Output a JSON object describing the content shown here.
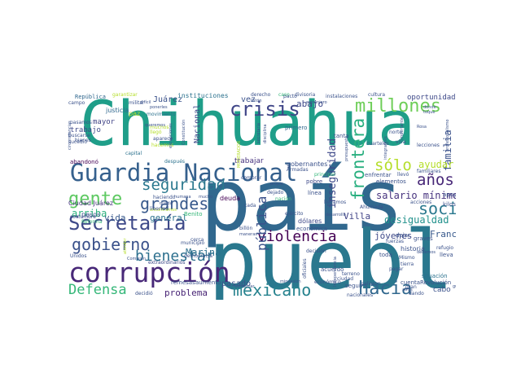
{
  "word_cloud": {
    "words": [
      {
        "text": "Chihuahua",
        "color": "#1f9e89"
      },
      {
        "text": "país",
        "color": "#31688e"
      },
      {
        "text": "pueblo",
        "color": "#2a788e"
      },
      {
        "text": "Guardia Nacional",
        "color": "#35608d"
      },
      {
        "text": "corrupción",
        "color": "#482878"
      },
      {
        "text": "Secretaría",
        "color": "#3e4989"
      },
      {
        "text": "millones",
        "color": "#6ece58"
      },
      {
        "text": "crisis",
        "color": "#404688"
      },
      {
        "text": "gente",
        "color": "#5ec962"
      },
      {
        "text": "mexicano",
        "color": "#26828e"
      },
      {
        "text": "hacia",
        "color": "#31688e"
      },
      {
        "text": "gobierno",
        "color": "#3b528b"
      },
      {
        "text": "Defensa",
        "color": "#35b779"
      },
      {
        "text": "bienestar",
        "color": "#2d708e"
      },
      {
        "text": "grandes",
        "color": "#38598c"
      },
      {
        "text": "seguridad",
        "color": "#2a788e"
      },
      {
        "text": "violencia",
        "color": "#440154"
      },
      {
        "text": "social",
        "color": "#2a788e"
      },
      {
        "text": "frontera",
        "color": "#29af7f"
      },
      {
        "text": "sólo",
        "color": "#b5de2b"
      },
      {
        "text": "años",
        "color": "#482878"
      },
      {
        "text": "pública",
        "color": "#3b528b"
      },
      {
        "text": "salario mínimo",
        "color": "#46327e"
      },
      {
        "text": "desigualdad",
        "color": "#21918c"
      },
      {
        "text": "inseguridad",
        "color": "#3e4989"
      },
      {
        "text": "familia",
        "color": "#3b528b"
      },
      {
        "text": "ayudar",
        "color": "#b5de2b"
      },
      {
        "text": "arriba",
        "color": "#2db27d"
      },
      {
        "text": "vida",
        "color": "#38598c"
      },
      {
        "text": "Marina",
        "color": "#2d708e"
      },
      {
        "text": "problema",
        "color": "#482475"
      },
      {
        "text": "Villa",
        "color": "#414487"
      },
      {
        "text": "jóvenes",
        "color": "#3e4989"
      },
      {
        "text": "Francisco",
        "color": "#38598c"
      },
      {
        "text": "oportunidades",
        "color": "#3e4989"
      },
      {
        "text": "Juárez",
        "color": "#3b528b"
      },
      {
        "text": "instituciones",
        "color": "#2c728e"
      },
      {
        "text": "República",
        "color": "#31688e"
      },
      {
        "text": "mayor",
        "color": "#414487"
      },
      {
        "text": "trabajo",
        "color": "#3e4989"
      },
      {
        "text": "vez",
        "color": "#3b528b"
      },
      {
        "text": "abajo",
        "color": "#3e4989"
      },
      {
        "text": "general",
        "color": "#2c728e"
      },
      {
        "text": "pasado",
        "color": "#3b528b"
      },
      {
        "text": "Nacional",
        "color": "#3e4989"
      },
      {
        "text": "Ciudad Juárez",
        "color": "#46327e"
      },
      {
        "text": "gobernantes",
        "color": "#3b528b"
      },
      {
        "text": "trabajar",
        "color": "#46327e"
      },
      {
        "text": "Benito",
        "color": "#35b779"
      },
      {
        "text": "dólares",
        "color": "#3e4989"
      },
      {
        "text": "historia",
        "color": "#3b528b"
      },
      {
        "text": "elementos",
        "color": "#3b528b"
      },
      {
        "text": "primero",
        "color": "#31688e"
      },
      {
        "text": "línea",
        "color": "#3b528b"
      },
      {
        "text": "pobre",
        "color": "#3e4989"
      },
      {
        "text": "deuda",
        "color": "#440154"
      },
      {
        "text": "cuenta",
        "color": "#3b528b"
      },
      {
        "text": "Revolución",
        "color": "#3b528b"
      },
      {
        "text": "seguir",
        "color": "#3b528b"
      },
      {
        "text": "cabo",
        "color": "#3b528b"
      },
      {
        "text": "remesas",
        "color": "#3b528b"
      },
      {
        "text": "aumento",
        "color": "#3b528b"
      },
      {
        "text": "económica",
        "color": "#3b528b"
      },
      {
        "text": "costumbre",
        "color": "#3e4989"
      },
      {
        "text": "pesos",
        "color": "#3b528b"
      },
      {
        "text": "justicia",
        "color": "#31688e"
      },
      {
        "text": "militar",
        "color": "#3b528b"
      },
      {
        "text": "paz",
        "color": "#b5de2b"
      },
      {
        "text": "caso",
        "color": "#35b779"
      },
      {
        "text": "dejar",
        "color": "#3b528b"
      },
      {
        "text": "graves",
        "color": "#3b528b"
      },
      {
        "text": "lleva",
        "color": "#3b528b"
      },
      {
        "text": "kilos",
        "color": "#3b528b"
      },
      {
        "text": "apoyo",
        "color": "#3b528b"
      },
      {
        "text": "situación",
        "color": "#2c728e"
      },
      {
        "text": "nacionales",
        "color": "#3b528b"
      },
      {
        "text": "salieron",
        "color": "#3b528b"
      },
      {
        "text": "acuerdo",
        "color": "#3b528b"
      },
      {
        "text": "decidió",
        "color": "#3b528b"
      },
      {
        "text": "extraordinarios",
        "color": "#3e4989"
      },
      {
        "text": "municipio",
        "color": "#3b528b"
      },
      {
        "text": "abandonó",
        "color": "#440154"
      },
      {
        "text": "después",
        "color": "#2c728e"
      },
      {
        "text": "capital",
        "color": "#2c728e"
      },
      {
        "text": "movimiento",
        "color": "#2c728e"
      },
      {
        "text": "hacemos",
        "color": "#b5de2b"
      },
      {
        "text": "encontramos",
        "color": "#b5de2b"
      },
      {
        "text": "haciendo",
        "color": "#3b528b"
      },
      {
        "text": "libertad",
        "color": "#3b528b"
      },
      {
        "text": "nación",
        "color": "#35b779"
      },
      {
        "text": "dejado",
        "color": "#3b528b"
      },
      {
        "text": "Armadas",
        "color": "#3b528b"
      },
      {
        "text": "llevó",
        "color": "#3b528b"
      },
      {
        "text": "enfrentar",
        "color": "#3b528b"
      },
      {
        "text": "principal",
        "color": "#35b779"
      },
      {
        "text": "lecciones",
        "color": "#3b528b"
      },
      {
        "text": "familiares",
        "color": "#3b528b"
      },
      {
        "text": "Ahumada",
        "color": "#3b528b"
      },
      {
        "text": "acciones",
        "color": "#3b528b"
      },
      {
        "text": "refugio",
        "color": "#3b528b"
      },
      {
        "text": "debemos",
        "color": "#3b528b"
      },
      {
        "text": "Mismo",
        "color": "#3b528b"
      },
      {
        "text": "gran",
        "color": "#3b528b"
      },
      {
        "text": "dando",
        "color": "#3b528b"
      },
      {
        "text": "gusto",
        "color": "#3b528b"
      },
      {
        "text": "económico",
        "color": "#3b528b"
      },
      {
        "text": "minvasión",
        "color": "#3b528b"
      },
      {
        "text": "aumentar",
        "color": "#3b528b"
      },
      {
        "text": "oficiales",
        "color": "#3b528b"
      },
      {
        "text": "toda",
        "color": "#3b528b"
      },
      {
        "text": "fuerzas",
        "color": "#3b528b"
      },
      {
        "text": "tanta",
        "color": "#3b528b"
      },
      {
        "text": "viva",
        "color": "#3b528b"
      },
      {
        "text": "pacto",
        "color": "#3b528b"
      },
      {
        "text": "derecho",
        "color": "#3b528b"
      },
      {
        "text": "listón",
        "color": "#3b528b"
      },
      {
        "text": "divisoria",
        "color": "#3b528b"
      },
      {
        "text": "extranjero",
        "color": "#3b528b"
      },
      {
        "text": "instalaciones",
        "color": "#3b528b"
      },
      {
        "text": "cultura",
        "color": "#3b528b"
      },
      {
        "text": "dónde",
        "color": "#3b528b"
      },
      {
        "text": "toque",
        "color": "#3b528b"
      },
      {
        "text": "profesionalismo",
        "color": "#3b528b"
      },
      {
        "text": "garantizar",
        "color": "#b5de2b"
      },
      {
        "text": "campo",
        "color": "#3b528b"
      },
      {
        "text": "circunstancias",
        "color": "#3b528b"
      },
      {
        "text": "muchos",
        "color": "#b5de2b"
      },
      {
        "text": "llegó",
        "color": "#b5de2b"
      },
      {
        "text": "comprar",
        "color": "#3b528b"
      },
      {
        "text": "cerca",
        "color": "#3b528b"
      },
      {
        "text": "democracia",
        "color": "#3b528b"
      },
      {
        "text": "cada",
        "color": "#3b528b"
      },
      {
        "text": "Unidos",
        "color": "#3b528b"
      },
      {
        "text": "buscarse",
        "color": "#3b528b"
      },
      {
        "text": "bienes",
        "color": "#3b528b"
      },
      {
        "text": "Rosa",
        "color": "#3b528b"
      },
      {
        "text": "norte",
        "color": "#3b528b"
      },
      {
        "text": "cuarteles",
        "color": "#3b528b"
      },
      {
        "text": "MODERADOR",
        "color": "#b5de2b"
      },
      {
        "text": "sucedió",
        "color": "#3b528b"
      },
      {
        "text": "aparece",
        "color": "#3b528b"
      },
      {
        "text": "secretaria",
        "color": "#3b528b"
      },
      {
        "text": "disciplina",
        "color": "#3b528b"
      },
      {
        "text": "maneras",
        "color": "#3b528b"
      },
      {
        "text": "billón",
        "color": "#3b528b"
      },
      {
        "text": "Reforma",
        "color": "#35b779"
      },
      {
        "text": "atender",
        "color": "#b5de2b"
      },
      {
        "text": "presupuesto",
        "color": "#3b528b"
      },
      {
        "text": "terreno",
        "color": "#3b528b"
      },
      {
        "text": "importante",
        "color": "#3b528b"
      },
      {
        "text": "propio",
        "color": "#3b528b"
      },
      {
        "text": "llegamos",
        "color": "#3b528b"
      },
      {
        "text": "Independencia",
        "color": "#3b528b"
      },
      {
        "text": "decisión",
        "color": "#3b528b"
      },
      {
        "text": "ejército",
        "color": "#3b528b"
      },
      {
        "text": "pasamos",
        "color": "#3b528b"
      },
      {
        "text": "ciudad",
        "color": "#3b528b"
      },
      {
        "text": "desarrollo",
        "color": "#3b528b"
      },
      {
        "text": "pagar",
        "color": "#3b528b"
      },
      {
        "text": "tierra",
        "color": "#3b528b"
      },
      {
        "text": "Comisión",
        "color": "#3b528b"
      },
      {
        "text": "atrás",
        "color": "#3b528b"
      },
      {
        "text": "queda",
        "color": "#3b528b"
      },
      {
        "text": "humana",
        "color": "#3b528b"
      },
      {
        "text": "mucho",
        "color": "#3b528b"
      },
      {
        "text": "Constitución",
        "color": "#3b528b"
      },
      {
        "text": "integrantes",
        "color": "#3b528b"
      },
      {
        "text": "excepciones",
        "color": "#3b528b"
      },
      {
        "text": "difícil",
        "color": "#3b528b"
      },
      {
        "text": "ponerles",
        "color": "#3b528b"
      },
      {
        "text": "queremos",
        "color": "#3b528b"
      }
    ]
  }
}
